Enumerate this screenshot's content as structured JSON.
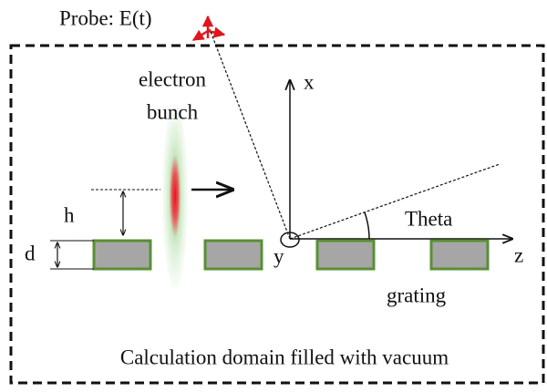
{
  "probe": "Probe: E(t)",
  "electron_bunch": [
    "electron",
    "bunch"
  ],
  "axes": {
    "x": "x",
    "y": "y",
    "z": "z",
    "angle": "Theta"
  },
  "dimensions": {
    "height": "h",
    "depth": "d"
  },
  "grating": "grating",
  "domain": "Calculation domain filled with vacuum"
}
